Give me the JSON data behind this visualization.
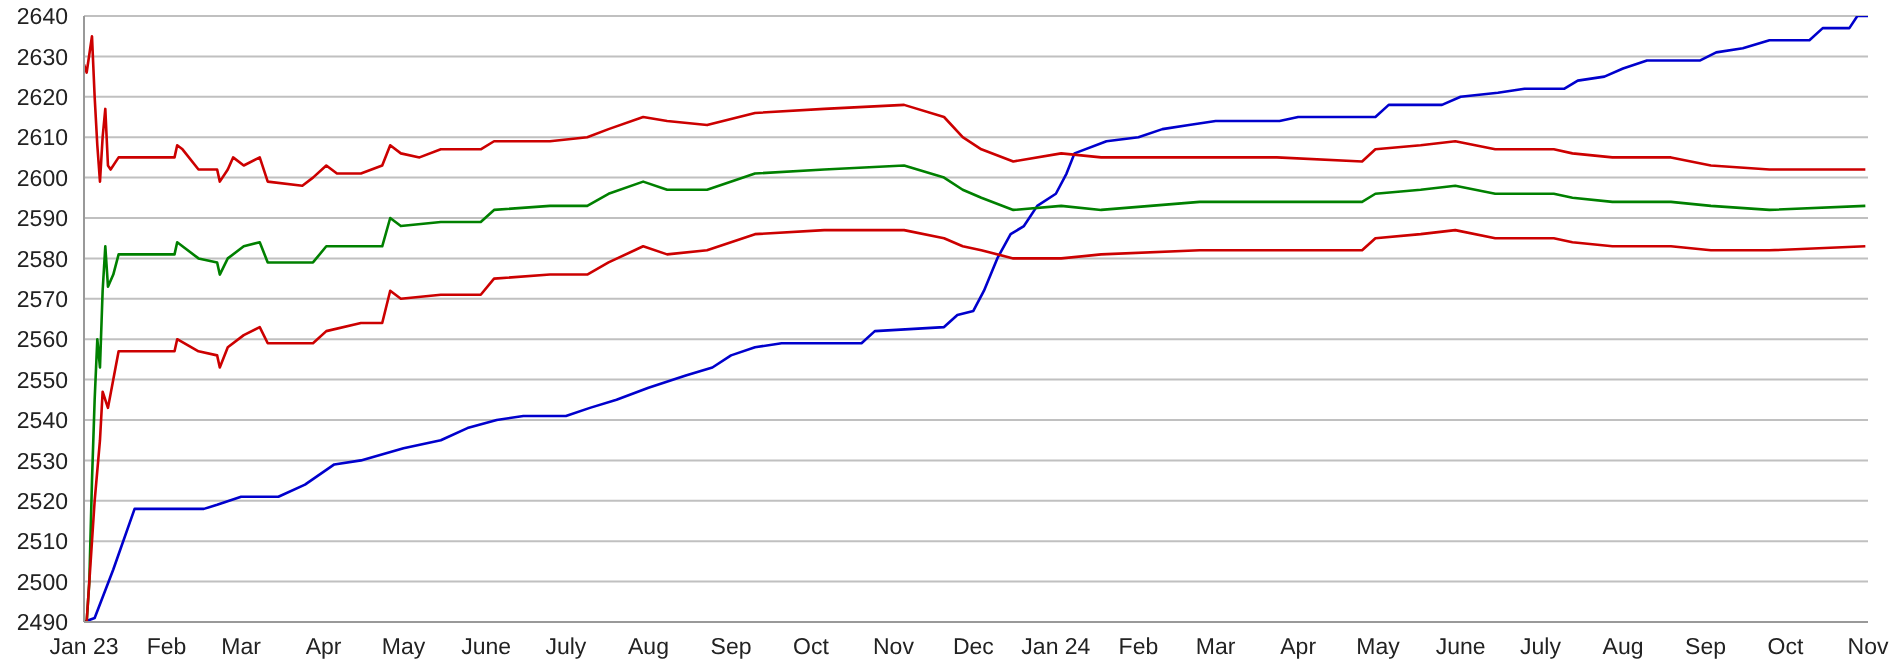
{
  "chart_data": {
    "type": "line",
    "xlim": [
      "2023-01-01",
      "2024-11-01"
    ],
    "xticks": [
      {
        "value": "2023-01-01",
        "label": "Jan 23"
      },
      {
        "value": "2023-02-01",
        "label": "Feb"
      },
      {
        "value": "2023-03-01",
        "label": "Mar"
      },
      {
        "value": "2023-04-01",
        "label": "Apr"
      },
      {
        "value": "2023-05-01",
        "label": "May"
      },
      {
        "value": "2023-06-01",
        "label": "June"
      },
      {
        "value": "2023-07-01",
        "label": "July"
      },
      {
        "value": "2023-08-01",
        "label": "Aug"
      },
      {
        "value": "2023-09-01",
        "label": "Sep"
      },
      {
        "value": "2023-10-01",
        "label": "Oct"
      },
      {
        "value": "2023-11-01",
        "label": "Nov"
      },
      {
        "value": "2023-12-01",
        "label": "Dec"
      },
      {
        "value": "2024-01-01",
        "label": "Jan 24"
      },
      {
        "value": "2024-02-01",
        "label": "Feb"
      },
      {
        "value": "2024-03-01",
        "label": "Mar"
      },
      {
        "value": "2024-04-01",
        "label": "Apr"
      },
      {
        "value": "2024-05-01",
        "label": "May"
      },
      {
        "value": "2024-06-01",
        "label": "June"
      },
      {
        "value": "2024-07-01",
        "label": "July"
      },
      {
        "value": "2024-08-01",
        "label": "Aug"
      },
      {
        "value": "2024-09-01",
        "label": "Sep"
      },
      {
        "value": "2024-10-01",
        "label": "Oct"
      },
      {
        "value": "2024-11-01",
        "label": "Nov"
      }
    ],
    "ylim": [
      2490,
      2640
    ],
    "yticks": [
      2490,
      2500,
      2510,
      2520,
      2530,
      2540,
      2550,
      2560,
      2570,
      2580,
      2590,
      2600,
      2610,
      2620,
      2630,
      2640
    ],
    "grid": "y",
    "marker": "none",
    "line_style": "solid",
    "series": [
      {
        "color": "#0000cc",
        "x": [
          "2023-01-01",
          "2023-01-05",
          "2023-01-12",
          "2023-01-20",
          "2023-02-15",
          "2023-02-20",
          "2023-03-01",
          "2023-03-15",
          "2023-03-25",
          "2023-04-05",
          "2023-04-15",
          "2023-05-01",
          "2023-05-15",
          "2023-05-25",
          "2023-06-05",
          "2023-06-15",
          "2023-07-01",
          "2023-07-10",
          "2023-07-20",
          "2023-08-01",
          "2023-08-15",
          "2023-08-25",
          "2023-09-01",
          "2023-09-10",
          "2023-09-20",
          "2023-10-20",
          "2023-10-25",
          "2023-11-20",
          "2023-11-25",
          "2023-12-01",
          "2023-12-05",
          "2023-12-10",
          "2023-12-15",
          "2023-12-20",
          "2023-12-25",
          "2024-01-01",
          "2024-01-05",
          "2024-01-08",
          "2024-01-20",
          "2024-02-01",
          "2024-02-10",
          "2024-02-20",
          "2024-03-01",
          "2024-03-25",
          "2024-04-01",
          "2024-04-30",
          "2024-05-05",
          "2024-05-25",
          "2024-06-01",
          "2024-06-15",
          "2024-06-25",
          "2024-07-10",
          "2024-07-15",
          "2024-07-25",
          "2024-08-01",
          "2024-08-10",
          "2024-08-30",
          "2024-09-05",
          "2024-09-15",
          "2024-09-25",
          "2024-10-10",
          "2024-10-15",
          "2024-10-25",
          "2024-10-28",
          "2024-11-01"
        ],
        "values": [
          2490,
          2491,
          2503,
          2518,
          2518,
          2519,
          2521,
          2521,
          2524,
          2529,
          2530,
          2533,
          2535,
          2538,
          2540,
          2541,
          2541,
          2543,
          2545,
          2548,
          2551,
          2553,
          2556,
          2558,
          2559,
          2559,
          2562,
          2563,
          2566,
          2567,
          2572,
          2580,
          2586,
          2588,
          2593,
          2596,
          2601,
          2606,
          2609,
          2610,
          2612,
          2613,
          2614,
          2614,
          2615,
          2615,
          2618,
          2618,
          2620,
          2621,
          2622,
          2622,
          2624,
          2625,
          2627,
          2629,
          2629,
          2631,
          2632,
          2634,
          2634,
          2637,
          2637,
          2640,
          2640
        ]
      },
      {
        "color": "#cc0000",
        "x": [
          "2023-01-01",
          "2023-01-02",
          "2023-01-04",
          "2023-01-05",
          "2023-01-06",
          "2023-01-07",
          "2023-01-08",
          "2023-01-09",
          "2023-01-10",
          "2023-01-11",
          "2023-01-14",
          "2023-02-04",
          "2023-02-05",
          "2023-02-07",
          "2023-02-13",
          "2023-02-20",
          "2023-02-21",
          "2023-02-24",
          "2023-02-26",
          "2023-03-02",
          "2023-03-08",
          "2023-03-11",
          "2023-03-24",
          "2023-03-28",
          "2023-04-02",
          "2023-04-06",
          "2023-04-15",
          "2023-04-23",
          "2023-04-26",
          "2023-04-30",
          "2023-05-07",
          "2023-05-15",
          "2023-05-30",
          "2023-06-04",
          "2023-06-25",
          "2023-07-09",
          "2023-07-17",
          "2023-07-30",
          "2023-08-08",
          "2023-08-23",
          "2023-09-10",
          "2023-10-06",
          "2023-11-05",
          "2023-11-20",
          "2023-11-27",
          "2023-12-04",
          "2023-12-16",
          "2024-01-03",
          "2024-01-18",
          "2024-02-24",
          "2024-03-24",
          "2024-04-25",
          "2024-04-30",
          "2024-05-17",
          "2024-05-30",
          "2024-06-14",
          "2024-07-06",
          "2024-07-13",
          "2024-07-28",
          "2024-08-19",
          "2024-09-03",
          "2024-09-25",
          "2024-10-31"
        ],
        "values": [
          2628,
          2626,
          2635,
          2620,
          2608,
          2599,
          2610,
          2617,
          2603,
          2602,
          2605,
          2605,
          2608,
          2607,
          2602,
          2602,
          2599,
          2602,
          2605,
          2603,
          2605,
          2599,
          2598,
          2600,
          2603,
          2601,
          2601,
          2603,
          2608,
          2606,
          2605,
          2607,
          2607,
          2609,
          2609,
          2610,
          2612,
          2615,
          2614,
          2613,
          2616,
          2617,
          2618,
          2615,
          2610,
          2607,
          2604,
          2606,
          2605,
          2605,
          2605,
          2604,
          2607,
          2608,
          2609,
          2607,
          2607,
          2606,
          2605,
          2605,
          2603,
          2602,
          2602
        ]
      },
      {
        "color": "#008000",
        "x": [
          "2023-01-01",
          "2023-01-02",
          "2023-01-03",
          "2023-01-04",
          "2023-01-05",
          "2023-01-06",
          "2023-01-07",
          "2023-01-08",
          "2023-01-09",
          "2023-01-10",
          "2023-01-12",
          "2023-01-14",
          "2023-02-04",
          "2023-02-05",
          "2023-02-13",
          "2023-02-20",
          "2023-02-21",
          "2023-02-24",
          "2023-03-02",
          "2023-03-08",
          "2023-03-11",
          "2023-03-28",
          "2023-04-02",
          "2023-04-23",
          "2023-04-26",
          "2023-04-30",
          "2023-05-15",
          "2023-05-30",
          "2023-06-04",
          "2023-06-25",
          "2023-07-09",
          "2023-07-17",
          "2023-07-30",
          "2023-08-08",
          "2023-08-23",
          "2023-09-10",
          "2023-10-06",
          "2023-11-05",
          "2023-11-20",
          "2023-11-27",
          "2023-12-04",
          "2023-12-16",
          "2024-01-03",
          "2024-01-18",
          "2024-02-24",
          "2024-04-25",
          "2024-04-30",
          "2024-05-17",
          "2024-05-30",
          "2024-06-14",
          "2024-07-06",
          "2024-07-13",
          "2024-07-28",
          "2024-08-19",
          "2024-09-03",
          "2024-09-25",
          "2024-10-31"
        ],
        "values": [
          2490,
          2490,
          2500,
          2525,
          2545,
          2560,
          2553,
          2572,
          2583,
          2573,
          2576,
          2581,
          2581,
          2584,
          2580,
          2579,
          2576,
          2580,
          2583,
          2584,
          2579,
          2579,
          2583,
          2583,
          2590,
          2588,
          2589,
          2589,
          2592,
          2593,
          2593,
          2596,
          2599,
          2597,
          2597,
          2601,
          2602,
          2603,
          2600,
          2597,
          2595,
          2592,
          2593,
          2592,
          2594,
          2594,
          2596,
          2597,
          2598,
          2596,
          2596,
          2595,
          2594,
          2594,
          2593,
          2592,
          2593
        ]
      },
      {
        "color": "#cc0000",
        "x": [
          "2023-01-01",
          "2023-01-02",
          "2023-01-03",
          "2023-01-05",
          "2023-01-07",
          "2023-01-08",
          "2023-01-10",
          "2023-01-12",
          "2023-01-14",
          "2023-02-04",
          "2023-02-05",
          "2023-02-13",
          "2023-02-20",
          "2023-02-21",
          "2023-02-24",
          "2023-03-02",
          "2023-03-08",
          "2023-03-11",
          "2023-03-28",
          "2023-04-02",
          "2023-04-15",
          "2023-04-23",
          "2023-04-26",
          "2023-04-30",
          "2023-05-15",
          "2023-05-30",
          "2023-06-04",
          "2023-06-25",
          "2023-07-09",
          "2023-07-17",
          "2023-07-30",
          "2023-08-08",
          "2023-08-23",
          "2023-09-10",
          "2023-10-06",
          "2023-11-05",
          "2023-11-20",
          "2023-11-27",
          "2023-12-04",
          "2023-12-16",
          "2024-01-03",
          "2024-01-18",
          "2024-02-24",
          "2024-04-25",
          "2024-04-30",
          "2024-05-17",
          "2024-05-30",
          "2024-06-14",
          "2024-07-06",
          "2024-07-13",
          "2024-07-28",
          "2024-08-19",
          "2024-09-03",
          "2024-09-25",
          "2024-10-31"
        ],
        "values": [
          2490,
          2490,
          2500,
          2520,
          2535,
          2547,
          2543,
          2550,
          2557,
          2557,
          2560,
          2557,
          2556,
          2553,
          2558,
          2561,
          2563,
          2559,
          2559,
          2562,
          2564,
          2564,
          2572,
          2570,
          2571,
          2571,
          2575,
          2576,
          2576,
          2579,
          2583,
          2581,
          2582,
          2586,
          2587,
          2587,
          2585,
          2583,
          2582,
          2580,
          2580,
          2581,
          2582,
          2582,
          2585,
          2586,
          2587,
          2585,
          2585,
          2584,
          2583,
          2583,
          2582,
          2582,
          2583
        ]
      }
    ]
  }
}
